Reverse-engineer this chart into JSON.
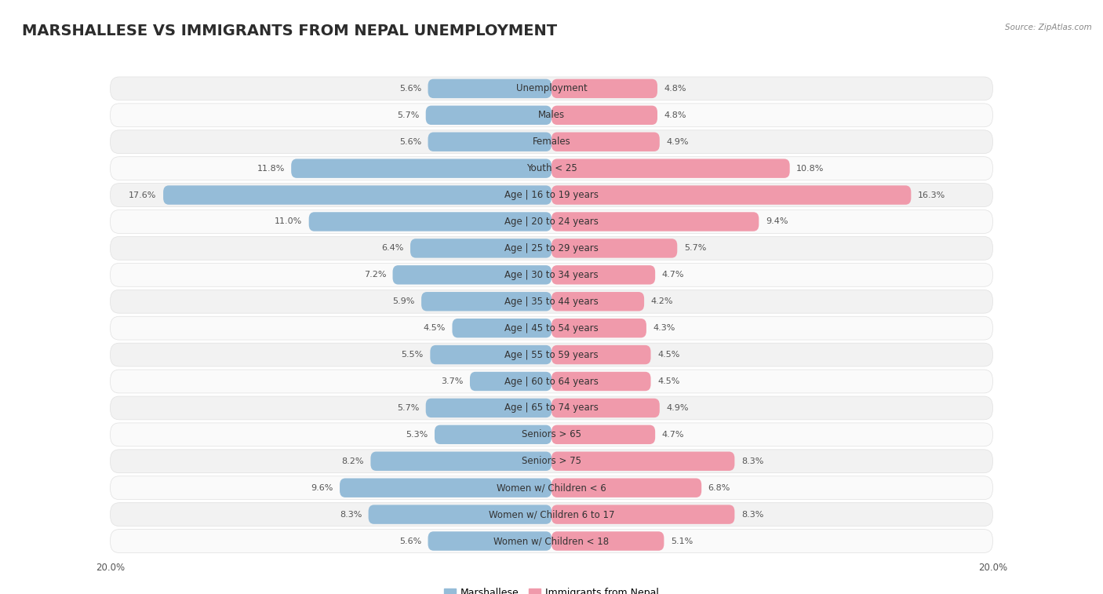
{
  "title": "MARSHALLESE VS IMMIGRANTS FROM NEPAL UNEMPLOYMENT",
  "source": "Source: ZipAtlas.com",
  "categories": [
    "Unemployment",
    "Males",
    "Females",
    "Youth < 25",
    "Age | 16 to 19 years",
    "Age | 20 to 24 years",
    "Age | 25 to 29 years",
    "Age | 30 to 34 years",
    "Age | 35 to 44 years",
    "Age | 45 to 54 years",
    "Age | 55 to 59 years",
    "Age | 60 to 64 years",
    "Age | 65 to 74 years",
    "Seniors > 65",
    "Seniors > 75",
    "Women w/ Children < 6",
    "Women w/ Children 6 to 17",
    "Women w/ Children < 18"
  ],
  "marshallese": [
    5.6,
    5.7,
    5.6,
    11.8,
    17.6,
    11.0,
    6.4,
    7.2,
    5.9,
    4.5,
    5.5,
    3.7,
    5.7,
    5.3,
    8.2,
    9.6,
    8.3,
    5.6
  ],
  "nepal": [
    4.8,
    4.8,
    4.9,
    10.8,
    16.3,
    9.4,
    5.7,
    4.7,
    4.2,
    4.3,
    4.5,
    4.5,
    4.9,
    4.7,
    8.3,
    6.8,
    8.3,
    5.1
  ],
  "marshallese_color": "#95bcd8",
  "nepal_color": "#f09aab",
  "axis_max": 20.0,
  "bg_color": "#ffffff",
  "row_bg_even": "#f2f2f2",
  "row_bg_odd": "#fafafa",
  "row_border": "#e0e0e0",
  "legend_marshallese": "Marshallese",
  "legend_nepal": "Immigrants from Nepal",
  "title_fontsize": 14,
  "label_fontsize": 8.5,
  "value_fontsize": 8.0,
  "axis_fontsize": 8.5
}
